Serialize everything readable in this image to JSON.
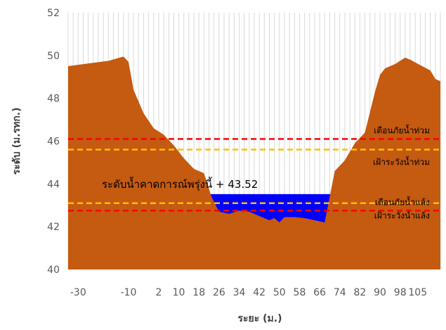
{
  "chart_data": {
    "type": "area",
    "xlabel": "ระยะ (ม.)",
    "ylabel": "ระดับ (ม.รทก.)",
    "xlim": [
      -34,
      114
    ],
    "ylim": [
      40,
      52
    ],
    "yticks": [
      40,
      42,
      44,
      46,
      48,
      50,
      52
    ],
    "xticks": [
      -30,
      -10,
      2,
      10,
      18,
      26,
      34,
      42,
      50,
      58,
      66,
      74,
      82,
      90,
      98,
      105
    ],
    "xtick_labels": [
      "-30",
      "-10",
      "2",
      "10",
      "18",
      "26",
      "34",
      "42",
      "50",
      "58",
      "66",
      "74",
      "82",
      "90",
      "98",
      "105"
    ],
    "grid": "vertical",
    "ground_profile": {
      "x": [
        -34,
        -18,
        -12,
        -10,
        -8,
        -4,
        0,
        4,
        8,
        12,
        16,
        20,
        23,
        26,
        30,
        34,
        38,
        42,
        46,
        48,
        50,
        52,
        54,
        56,
        60,
        64,
        68,
        70,
        72,
        76,
        80,
        84,
        88,
        90,
        92,
        96,
        100,
        102,
        106,
        110,
        112,
        114
      ],
      "y": [
        49.5,
        49.75,
        49.95,
        49.7,
        48.4,
        47.3,
        46.6,
        46.3,
        45.8,
        45.2,
        44.7,
        44.5,
        43.4,
        42.7,
        42.6,
        42.75,
        42.7,
        42.5,
        42.3,
        42.4,
        42.2,
        42.45,
        42.45,
        42.45,
        42.4,
        42.3,
        42.2,
        43.4,
        44.6,
        45.1,
        45.9,
        46.4,
        48.3,
        49.1,
        49.4,
        49.6,
        49.9,
        49.8,
        49.55,
        49.3,
        48.9,
        48.8
      ],
      "color": "#c55a11"
    },
    "water": {
      "level": 43.52,
      "color": "#0000ff"
    },
    "forecast_label": "ระดับน้ำคาดการณ์พรุ่งนี้ + 43.52",
    "threshold_lines": [
      {
        "name": "เตือนภัยน้ำท่วม",
        "value": 46.1,
        "color": "#ff0000"
      },
      {
        "name": "เฝ้าระวังน้ำท่วม",
        "value": 45.6,
        "color": "#ffc000"
      },
      {
        "name": "เฝ้าระวังน้ำแล้ง",
        "value": 43.1,
        "color": "#ffc000"
      },
      {
        "name": "เตือนภัยน้ำแล้ง",
        "value": 42.75,
        "color": "#ff0000"
      }
    ]
  }
}
